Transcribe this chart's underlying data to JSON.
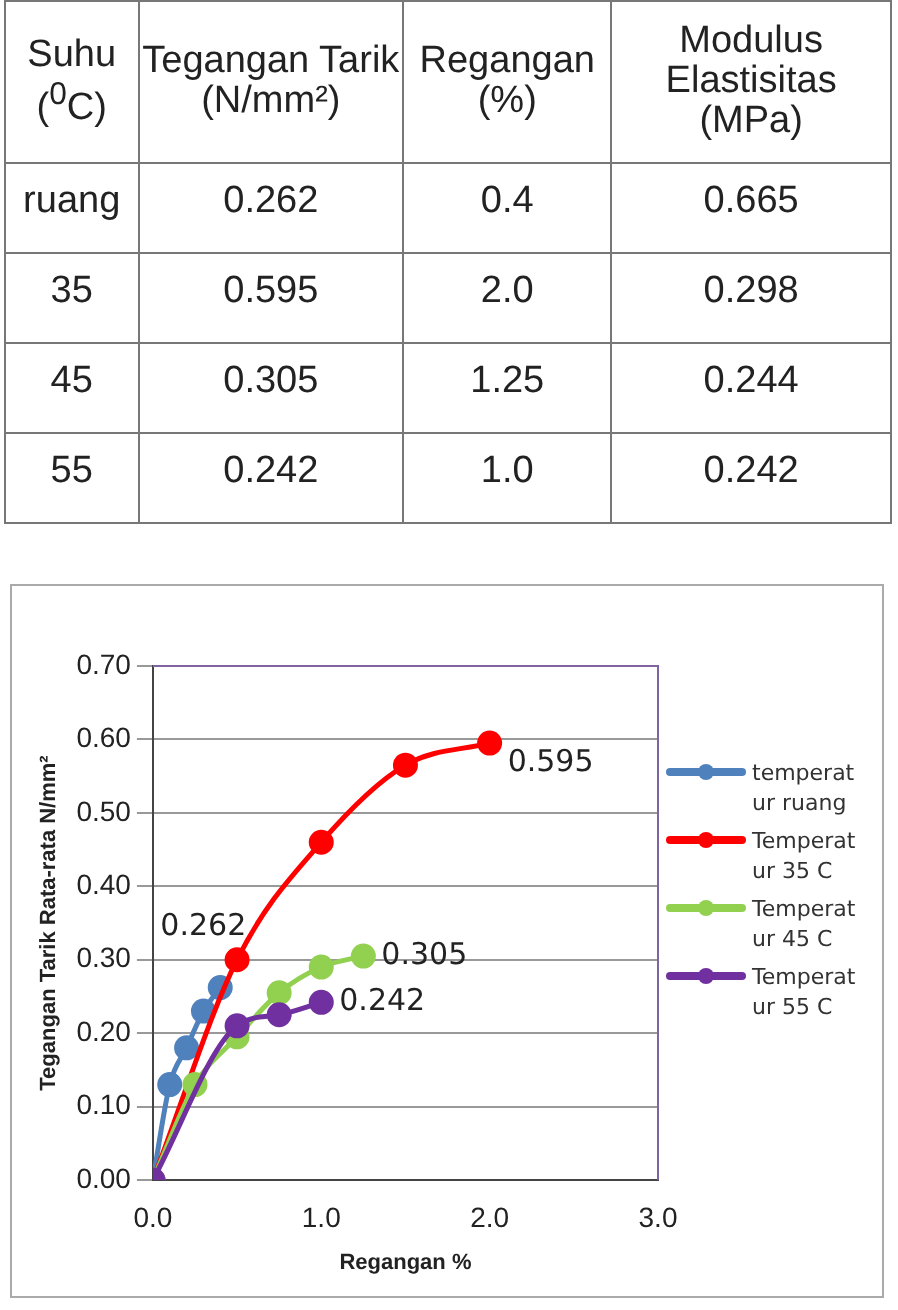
{
  "chart_data": [
    {
      "type": "other",
      "categories": [
        "Suhu ($^{0}$C)",
        "Tegangan Tarik (N/mm²)",
        "Regangan (%)",
        "Modulus Elastisitas (MPa)"
      ],
      "annotations": [
        "ruang",
        "0.262",
        "0.4",
        "0.665",
        "35",
        "0.595",
        "2.0",
        "0.298",
        "45",
        "0.305",
        "1.25",
        "0.244",
        "55",
        "0.242",
        "1.0",
        "0.242"
      ]
    },
    {
      "type": "line",
      "xlabel": "Regangan %",
      "ylabel": "Tegangan Tarik Rata-rata N/mm²",
      "xlim": [
        0,
        3
      ],
      "xticks": [
        {
          "value": 0,
          "label": "0.0"
        },
        {
          "value": 1,
          "label": "1.0"
        },
        {
          "value": 2,
          "label": "2.0"
        },
        {
          "value": 3,
          "label": "3.0"
        }
      ],
      "ylim": [
        0,
        0.7
      ],
      "yticks": [
        {
          "value": 0,
          "label": "0.00"
        },
        {
          "value": 0.1,
          "label": "0.10"
        },
        {
          "value": 0.2,
          "label": "0.20"
        },
        {
          "value": 0.3,
          "label": "0.30"
        },
        {
          "value": 0.4,
          "label": "0.40"
        },
        {
          "value": 0.5,
          "label": "0.50"
        },
        {
          "value": 0.6,
          "label": "0.60"
        },
        {
          "value": 0.7,
          "label": "0.70"
        }
      ],
      "grid": "y",
      "legend": "right",
      "marker": "circle",
      "series": [
        {
          "name": "temperatur ruang",
          "color": "#4f81bd",
          "x": [
            0,
            0.1,
            0.2,
            0.3,
            0.4
          ],
          "values": [
            0,
            0.13,
            0.18,
            0.23,
            0.262
          ]
        },
        {
          "name": "Temperatur 35 C",
          "color": "#ff0000",
          "x": [
            0,
            0.5,
            1.0,
            1.5,
            2.0
          ],
          "values": [
            0,
            0.3,
            0.46,
            0.565,
            0.595
          ]
        },
        {
          "name": "Temperatur 45 C",
          "color": "#92d050",
          "x": [
            0,
            0.25,
            0.5,
            0.75,
            1.0,
            1.25
          ],
          "values": [
            0,
            0.13,
            0.195,
            0.255,
            0.29,
            0.305
          ]
        },
        {
          "name": "Temperatur 55 C",
          "color": "#7030a0",
          "x": [
            0,
            0.5,
            0.75,
            1.0
          ],
          "values": [
            0,
            0.21,
            0.225,
            0.242
          ]
        }
      ],
      "annotations": [
        {
          "text": "0.262",
          "x": 0.4,
          "y": 0.262
        },
        {
          "text": "0.595",
          "x": 2.0,
          "y": 0.595
        },
        {
          "text": "0.305",
          "x": 1.25,
          "y": 0.305
        },
        {
          "text": "0.242",
          "x": 1.0,
          "y": 0.242
        }
      ]
    }
  ]
}
